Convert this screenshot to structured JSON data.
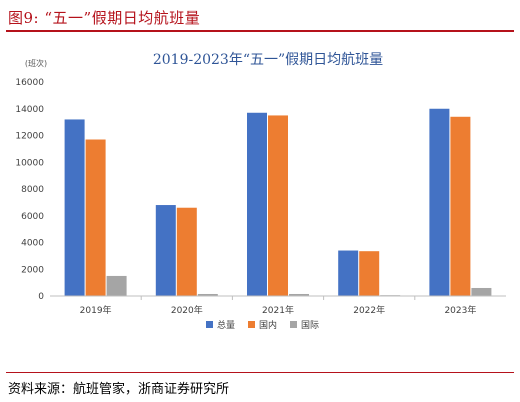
{
  "figure": {
    "label": "图9:",
    "caption": "“五一”假期日均航班量"
  },
  "source": {
    "text": "资料来源：航班管家，浙商证券研究所"
  },
  "colors": {
    "accent": "#b5121b",
    "total": "#4472c4",
    "domestic": "#ed7d31",
    "international": "#a5a5a5"
  },
  "chart_data": {
    "type": "bar",
    "title": "2019-2023年“五一”假期日均航班量",
    "ylabel": "(班次)",
    "xlabel": "",
    "categories": [
      "2019年",
      "2020年",
      "2021年",
      "2022年",
      "2023年"
    ],
    "series": [
      {
        "name": "总量",
        "values": [
          13200,
          6800,
          13700,
          3400,
          14000
        ]
      },
      {
        "name": "国内",
        "values": [
          11700,
          6600,
          13500,
          3350,
          13400
        ]
      },
      {
        "name": "国际",
        "values": [
          1500,
          150,
          150,
          60,
          600
        ]
      }
    ],
    "ylim": [
      0,
      16000
    ],
    "yticks": [
      0,
      2000,
      4000,
      6000,
      8000,
      10000,
      12000,
      14000,
      16000
    ],
    "grid": false,
    "legend_position": "bottom"
  }
}
